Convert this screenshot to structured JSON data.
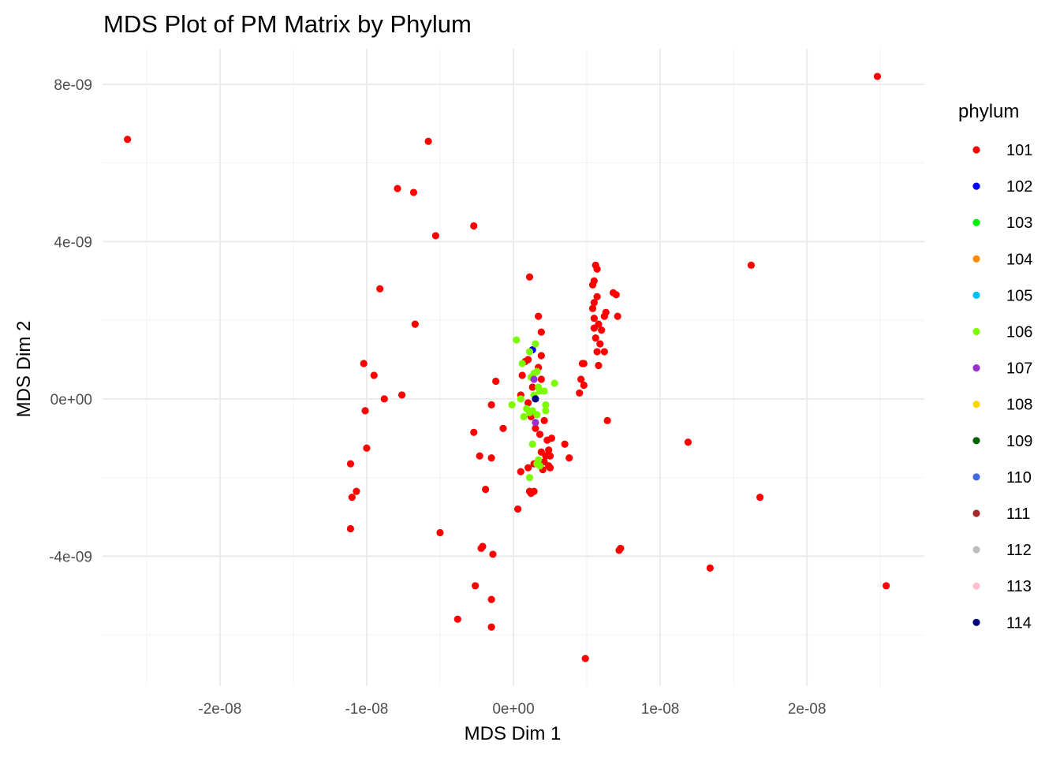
{
  "chart_data": {
    "type": "scatter",
    "title": "MDS Plot of PM Matrix by Phylum",
    "xlabel": "MDS Dim 1",
    "ylabel": "MDS Dim 2",
    "xlim": [
      -2.8e-08,
      2.8e-08
    ],
    "ylim": [
      -7.3e-09,
      8.9e-09
    ],
    "grid": true,
    "legend_position": "right",
    "legend_title": "phylum",
    "x_ticks": [
      {
        "value": -2e-08,
        "label": "-2e-08"
      },
      {
        "value": -1e-08,
        "label": "-1e-08"
      },
      {
        "value": 0,
        "label": "0e+00"
      },
      {
        "value": 1e-08,
        "label": "1e-08"
      },
      {
        "value": 2e-08,
        "label": "2e-08"
      }
    ],
    "y_ticks": [
      {
        "value": -4e-09,
        "label": "-4e-09"
      },
      {
        "value": 0,
        "label": "0e+00"
      },
      {
        "value": 4e-09,
        "label": "4e-09"
      },
      {
        "value": 8e-09,
        "label": "8e-09"
      }
    ],
    "legend": [
      {
        "label": "101",
        "color": "#ff0000"
      },
      {
        "label": "102",
        "color": "#0000ff"
      },
      {
        "label": "103",
        "color": "#00ee00"
      },
      {
        "label": "104",
        "color": "#ff8c00"
      },
      {
        "label": "105",
        "color": "#00bfff"
      },
      {
        "label": "106",
        "color": "#7cfc00"
      },
      {
        "label": "107",
        "color": "#9932cc"
      },
      {
        "label": "108",
        "color": "#ffd700"
      },
      {
        "label": "109",
        "color": "#006400"
      },
      {
        "label": "110",
        "color": "#4169e1"
      },
      {
        "label": "111",
        "color": "#a52a2a"
      },
      {
        "label": "112",
        "color": "#bebebe"
      },
      {
        "label": "113",
        "color": "#ffc0cb"
      },
      {
        "label": "114",
        "color": "#000080"
      }
    ],
    "series": [
      {
        "legend_label": "101",
        "points": [
          [
            -2.63e-08,
            6.6e-09
          ],
          [
            2.48e-08,
            8.2e-09
          ],
          [
            2.54e-08,
            -4.75e-09
          ],
          [
            -5.8e-09,
            6.55e-09
          ],
          [
            -7.9e-09,
            5.35e-09
          ],
          [
            -6.8e-09,
            5.25e-09
          ],
          [
            -5.3e-09,
            4.15e-09
          ],
          [
            -2.7e-09,
            4.4e-09
          ],
          [
            1.62e-08,
            3.4e-09
          ],
          [
            -9.1e-09,
            2.8e-09
          ],
          [
            -6.7e-09,
            1.9e-09
          ],
          [
            -1.02e-08,
            9e-10
          ],
          [
            -9.5e-09,
            6e-10
          ],
          [
            -7.6e-09,
            1e-10
          ],
          [
            -8.8e-09,
            0.0
          ],
          [
            -1.01e-08,
            -3e-10
          ],
          [
            -1e-08,
            -1.25e-09
          ],
          [
            -1.11e-08,
            -1.65e-09
          ],
          [
            -1.07e-08,
            -2.35e-09
          ],
          [
            -1.1e-08,
            -2.5e-09
          ],
          [
            -1.11e-08,
            -3.3e-09
          ],
          [
            1.68e-08,
            -2.5e-09
          ],
          [
            1.19e-08,
            -1.1e-09
          ],
          [
            1.34e-08,
            -4.3e-09
          ],
          [
            7.3e-09,
            -3.8e-09
          ],
          [
            7.2e-09,
            -3.85e-09
          ],
          [
            4.9e-09,
            -6.6e-09
          ],
          [
            -5e-09,
            -3.4e-09
          ],
          [
            -2.1e-09,
            -3.75e-09
          ],
          [
            -2.2e-09,
            -3.8e-09
          ],
          [
            -1.4e-09,
            -3.95e-09
          ],
          [
            -2.6e-09,
            -4.75e-09
          ],
          [
            -1.5e-09,
            -5.1e-09
          ],
          [
            -3.8e-09,
            -5.6e-09
          ],
          [
            -1.5e-09,
            -5.8e-09
          ],
          [
            3e-10,
            -2.8e-09
          ],
          [
            -1.9e-09,
            -2.3e-09
          ],
          [
            -2.3e-09,
            -1.45e-09
          ],
          [
            -1.5e-09,
            -1.5e-09
          ],
          [
            -2.7e-09,
            -8.5e-10
          ],
          [
            -7e-10,
            -7.5e-10
          ],
          [
            -1.5e-09,
            -1.5e-10
          ],
          [
            -1.2e-09,
            4.5e-10
          ],
          [
            1.1e-09,
            3.1e-09
          ],
          [
            1.7e-09,
            2.1e-09
          ],
          [
            1.9e-09,
            1.7e-09
          ],
          [
            5.6e-09,
            3.4e-09
          ],
          [
            5.7e-09,
            3.3e-09
          ],
          [
            5.5e-09,
            3e-09
          ],
          [
            5.4e-09,
            2.9e-09
          ],
          [
            5.7e-09,
            2.6e-09
          ],
          [
            6.8e-09,
            2.7e-09
          ],
          [
            7e-09,
            2.65e-09
          ],
          [
            5.5e-09,
            2.45e-09
          ],
          [
            5.4e-09,
            2.3e-09
          ],
          [
            6.3e-09,
            2.2e-09
          ],
          [
            6.2e-09,
            2.1e-09
          ],
          [
            7.1e-09,
            2.1e-09
          ],
          [
            5.5e-09,
            2.05e-09
          ],
          [
            5.8e-09,
            1.9e-09
          ],
          [
            5.5e-09,
            1.8e-09
          ],
          [
            6e-09,
            1.75e-09
          ],
          [
            5.6e-09,
            1.55e-09
          ],
          [
            5.9e-09,
            1.4e-09
          ],
          [
            6.2e-09,
            1.2e-09
          ],
          [
            5.7e-09,
            1.2e-09
          ],
          [
            5.8e-09,
            8.5e-10
          ],
          [
            4.7e-09,
            9e-10
          ],
          [
            4.8e-09,
            9e-10
          ],
          [
            4.6e-09,
            5e-10
          ],
          [
            4.8e-09,
            3.5e-10
          ],
          [
            4.5e-09,
            1.5e-10
          ],
          [
            6.4e-09,
            -5.5e-10
          ],
          [
            1.9e-09,
            1.1e-09
          ],
          [
            1.7e-09,
            8e-10
          ],
          [
            1.9e-09,
            5e-10
          ],
          [
            1.3e-09,
            3e-10
          ],
          [
            1e-09,
            1e-09
          ],
          [
            8e-10,
            9.5e-10
          ],
          [
            6e-10,
            6e-10
          ],
          [
            5e-10,
            1e-10
          ],
          [
            1e-09,
            -1e-10
          ],
          [
            1.2e-09,
            -4.5e-10
          ],
          [
            2.1e-09,
            -5.5e-10
          ],
          [
            1.5e-09,
            -7.5e-10
          ],
          [
            1.8e-09,
            -9e-10
          ],
          [
            2.6e-09,
            -1e-09
          ],
          [
            2.3e-09,
            -1.05e-09
          ],
          [
            3.5e-09,
            -1.15e-09
          ],
          [
            2.4e-09,
            -1.3e-09
          ],
          [
            1.9e-09,
            -1.35e-09
          ],
          [
            2.2e-09,
            -1.45e-09
          ],
          [
            2.5e-09,
            -1.45e-09
          ],
          [
            3.8e-09,
            -1.5e-09
          ],
          [
            2.1e-09,
            -1.6e-09
          ],
          [
            2.4e-09,
            -1.7e-09
          ],
          [
            1.4e-09,
            -1.65e-09
          ],
          [
            1e-09,
            -1.75e-09
          ],
          [
            2.5e-09,
            -1.75e-09
          ],
          [
            2e-09,
            -1.8e-09
          ],
          [
            5e-10,
            -1.85e-09
          ],
          [
            1.1e-09,
            -2.35e-09
          ],
          [
            1.4e-09,
            -2.35e-09
          ],
          [
            1.2e-09,
            -2.4e-09
          ]
        ]
      },
      {
        "legend_label": "102",
        "points": [
          [
            1.3e-09,
            1.25e-09
          ]
        ]
      },
      {
        "legend_label": "106",
        "points": [
          [
            2e-10,
            1.5e-09
          ],
          [
            1.5e-09,
            1.4e-09
          ],
          [
            1.1e-09,
            1.2e-09
          ],
          [
            6e-10,
            9e-10
          ],
          [
            1.6e-09,
            7e-10
          ],
          [
            1.4e-09,
            6.5e-10
          ],
          [
            1.2e-09,
            5.5e-10
          ],
          [
            2.8e-09,
            4e-10
          ],
          [
            1.7e-09,
            3e-10
          ],
          [
            1.8e-09,
            2e-10
          ],
          [
            2.1e-09,
            2e-10
          ],
          [
            1.4e-09,
            1e-10
          ],
          [
            5e-10,
            0.0
          ],
          [
            -1e-10,
            -1.5e-10
          ],
          [
            2.2e-09,
            -1.5e-10
          ],
          [
            9e-10,
            -2.5e-10
          ],
          [
            1.3e-09,
            -3e-10
          ],
          [
            2.2e-09,
            -3e-10
          ],
          [
            1.1e-09,
            -3.5e-10
          ],
          [
            1.6e-09,
            -4e-10
          ],
          [
            7e-10,
            -4.5e-10
          ],
          [
            1.3e-09,
            -1.15e-09
          ],
          [
            1.7e-09,
            -1.55e-09
          ],
          [
            1.6e-09,
            -1.65e-09
          ],
          [
            1.8e-09,
            -1.7e-09
          ],
          [
            1.1e-09,
            -2e-09
          ]
        ]
      },
      {
        "legend_label": "107",
        "points": [
          [
            1.4e-09,
            5e-10
          ],
          [
            1.5e-09,
            -6e-10
          ]
        ]
      },
      {
        "legend_label": "114",
        "points": [
          [
            1.5e-09,
            0.0
          ]
        ]
      }
    ]
  }
}
